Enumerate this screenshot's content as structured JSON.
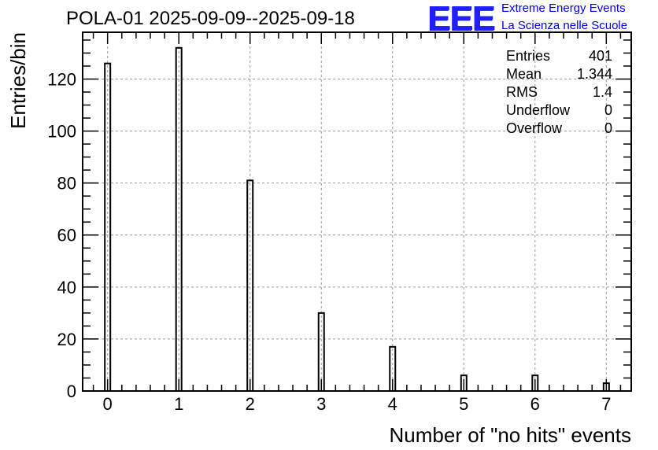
{
  "chart_data": {
    "type": "bar",
    "title": "POLA-01 2025-09-09--2025-09-18",
    "xlabel": "Number of \"no hits\" events",
    "ylabel": "Entries/bin",
    "categories": [
      "0",
      "1",
      "2",
      "3",
      "4",
      "5",
      "6",
      "7"
    ],
    "x": [
      0,
      1,
      2,
      3,
      4,
      5,
      6,
      7
    ],
    "values": [
      126,
      132,
      81,
      30,
      17,
      6,
      6,
      3
    ],
    "xlim": [
      -0.35,
      7.35
    ],
    "ylim": [
      0,
      138
    ],
    "yticks": [
      0,
      20,
      40,
      60,
      80,
      100,
      120
    ],
    "grid": true,
    "stats_box": {
      "placement": "top-right",
      "rows": [
        {
          "label": "Entries",
          "value": "401"
        },
        {
          "label": "Mean",
          "value": "1.344"
        },
        {
          "label": "RMS",
          "value": "1.4"
        },
        {
          "label": "Underflow",
          "value": "0"
        },
        {
          "label": "Overflow",
          "value": "0"
        }
      ]
    }
  },
  "logo": {
    "text": "EEE",
    "line1": "Extreme Energy Events",
    "line2": "La Scienza nelle Scuole",
    "color": "#0000ee"
  }
}
